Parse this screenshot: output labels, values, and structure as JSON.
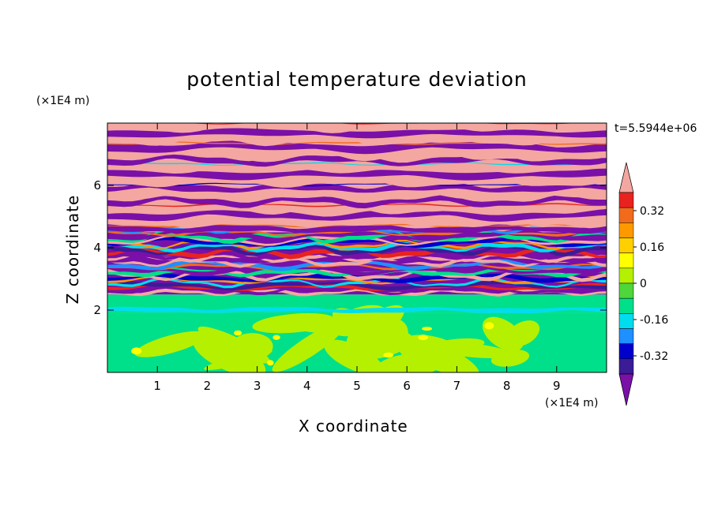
{
  "chart_data": {
    "type": "heatmap",
    "title": "potential temperature deviation",
    "xlabel": "X coordinate",
    "ylabel": "Z coordinate",
    "x_unit_label": "(×1E4 m)",
    "z_unit_label": "(×1E4 m)",
    "time_label": "t=5.5944e+06",
    "xlim": [
      0,
      10
    ],
    "ylim": [
      0,
      8
    ],
    "x_ticks": [
      1,
      2,
      3,
      4,
      5,
      6,
      7,
      8,
      9
    ],
    "y_ticks": [
      2,
      4,
      6
    ],
    "colorbar": {
      "tick_values": [
        0.32,
        0.16,
        0,
        -0.16,
        -0.32
      ],
      "tick_labels": [
        "0.32",
        "0.16",
        "0",
        "-0.16",
        "-0.32"
      ],
      "level_colors": [
        "#f4a6a0",
        "#e8231f",
        "#f26b1d",
        "#ff9900",
        "#ffd000",
        "#ffff00",
        "#b4f000",
        "#4fd63a",
        "#00e08a",
        "#00ddee",
        "#1e90ff",
        "#0000cc",
        "#3a1c96",
        "#7a10a8"
      ],
      "extend": "both"
    },
    "field_description_regions": [
      {
        "z_range": [
          0,
          1.9
        ],
        "dominant": "#00e08a",
        "secondary": "#b4f000"
      },
      {
        "z_range": [
          1.9,
          2.5
        ],
        "dominant": "#00e08a",
        "secondary": "#00ddee"
      },
      {
        "z_range": [
          2.5,
          4.5
        ],
        "dominant": "#7a10a8",
        "secondary": "#f4a6a0"
      },
      {
        "z_range": [
          4.5,
          8.0
        ],
        "dominant": "#f4a6a0",
        "secondary": "#7a10a8"
      }
    ],
    "grid": false
  }
}
